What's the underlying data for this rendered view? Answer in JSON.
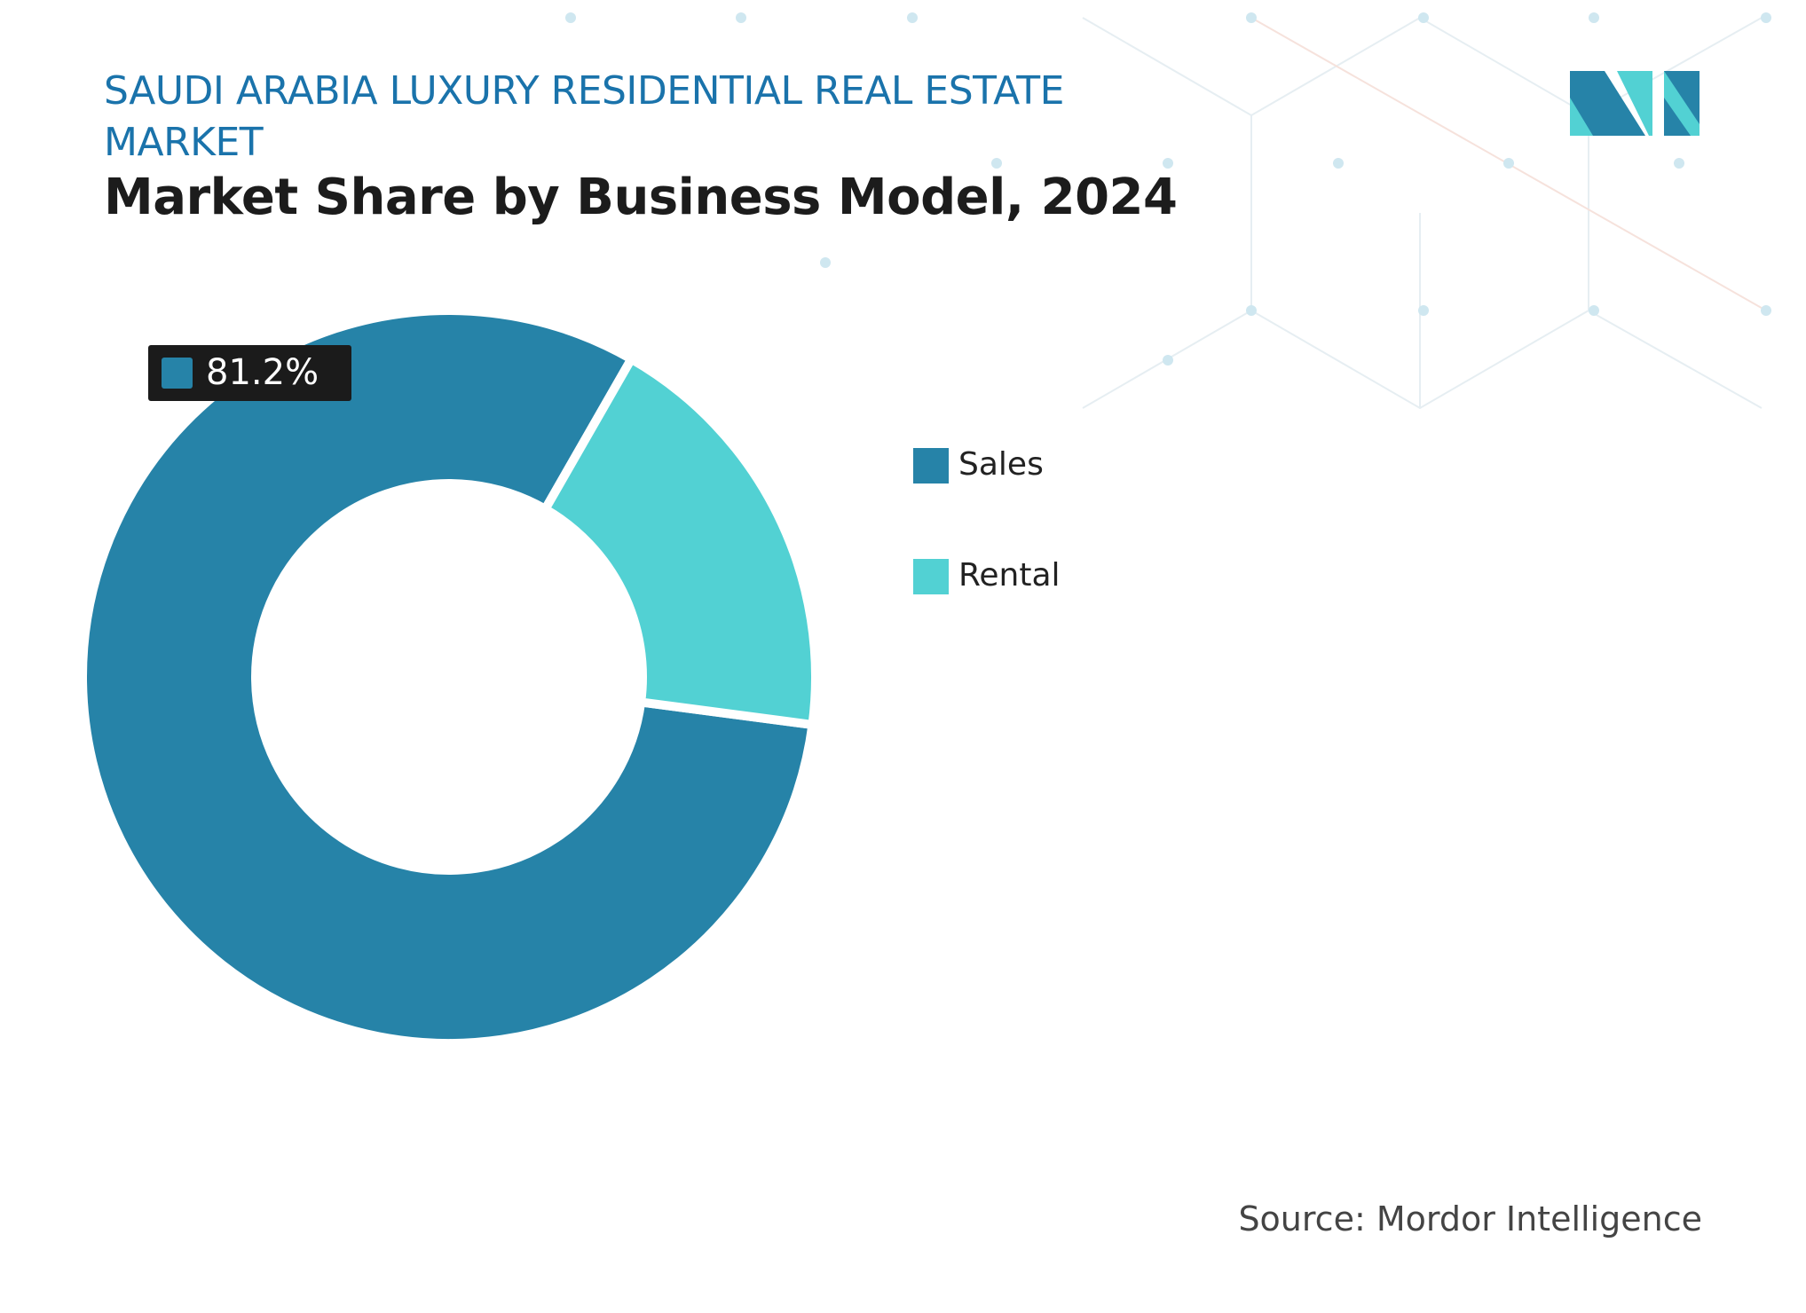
{
  "chart_data": {
    "type": "donut",
    "title": "SAUDI ARABIA LUXURY RESIDENTIAL REAL ESTATE MARKET",
    "subtitle": "Market Share by Business Model, 2024",
    "source": "Source: Mordor Intelligence",
    "categories": [
      "Sales",
      "Rental"
    ],
    "values": [
      81.2,
      18.8
    ],
    "value_labels": [
      "81.2%",
      null
    ],
    "colors": [
      "#2683a8",
      "#52d1d3"
    ],
    "legend": "right"
  }
}
